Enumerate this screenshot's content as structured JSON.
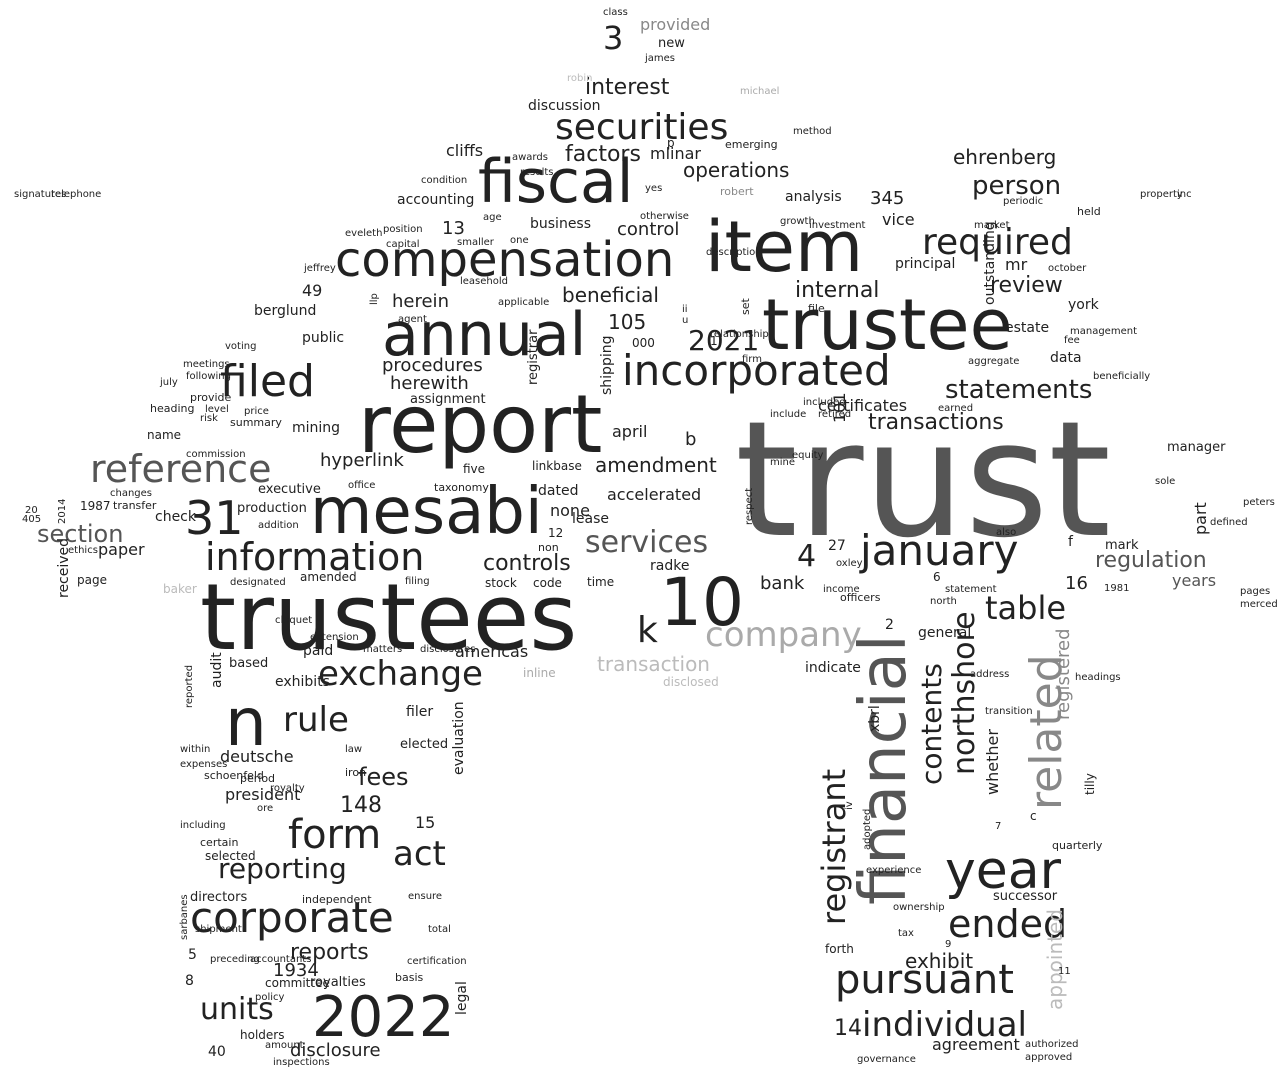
{
  "words": [
    {
      "text": "trust",
      "color": "#555555"
    },
    {
      "text": "trustees",
      "color": "#222222"
    },
    {
      "text": "item",
      "color": "#222222"
    },
    {
      "text": "trustee",
      "color": "#222222"
    },
    {
      "text": "report",
      "color": "#222222"
    },
    {
      "text": "mesabi",
      "color": "#222222"
    },
    {
      "text": "fiscal",
      "color": "#222222"
    },
    {
      "text": "annual",
      "color": "#222222"
    },
    {
      "text": "compensation",
      "color": "#222222"
    },
    {
      "text": "financial",
      "color": "#555555"
    },
    {
      "text": "2022",
      "color": "#222222"
    },
    {
      "text": "10",
      "color": "#222222"
    },
    {
      "text": "n",
      "color": "#222222"
    },
    {
      "text": "year",
      "color": "#222222"
    },
    {
      "text": "incorporated",
      "color": "#222222"
    },
    {
      "text": "january",
      "color": "#222222"
    },
    {
      "text": "pursuant",
      "color": "#222222"
    },
    {
      "text": "reference",
      "color": "#555555"
    },
    {
      "text": "filed",
      "color": "#222222"
    },
    {
      "text": "corporate",
      "color": "#222222"
    },
    {
      "text": "information",
      "color": "#222222"
    },
    {
      "text": "securities",
      "color": "#222222"
    },
    {
      "text": "form",
      "color": "#222222"
    },
    {
      "text": "ended",
      "color": "#222222"
    },
    {
      "text": "required",
      "color": "#222222"
    },
    {
      "text": "individual",
      "color": "#222222"
    },
    {
      "text": "related",
      "color": "#888888"
    },
    {
      "text": "registrant",
      "color": "#222222"
    },
    {
      "text": "exchange",
      "color": "#222222"
    },
    {
      "text": "company",
      "color": "#aaaaaa"
    },
    {
      "text": "31",
      "color": "#222222"
    },
    {
      "text": "table",
      "color": "#222222"
    },
    {
      "text": "statements",
      "color": "#222222"
    },
    {
      "text": "services",
      "color": "#555555"
    },
    {
      "text": "rule",
      "color": "#222222"
    },
    {
      "text": "reporting",
      "color": "#222222"
    },
    {
      "text": "act",
      "color": "#222222"
    },
    {
      "text": "units",
      "color": "#222222"
    },
    {
      "text": "transactions",
      "color": "#222222"
    },
    {
      "text": "person",
      "color": "#222222"
    },
    {
      "text": "northshore",
      "color": "#222222"
    },
    {
      "text": "contents",
      "color": "#222222"
    },
    {
      "text": "section",
      "color": "#555555"
    },
    {
      "text": "k",
      "color": "#222222"
    },
    {
      "text": "3",
      "color": "#222222"
    },
    {
      "text": "4",
      "color": "#222222"
    },
    {
      "text": "interest",
      "color": "#222222"
    },
    {
      "text": "review",
      "color": "#222222"
    },
    {
      "text": "controls",
      "color": "#222222"
    },
    {
      "text": "amendment",
      "color": "#222222"
    },
    {
      "text": "internal",
      "color": "#222222"
    },
    {
      "text": "beneficial",
      "color": "#222222"
    },
    {
      "text": "fees",
      "color": "#222222"
    },
    {
      "text": "reports",
      "color": "#222222"
    },
    {
      "text": "operations",
      "color": "#222222"
    },
    {
      "text": "ehrenberg",
      "color": "#222222"
    },
    {
      "text": "regulation",
      "color": "#555555"
    },
    {
      "text": "transaction",
      "color": "#bbbbbb"
    },
    {
      "text": "exhibit",
      "color": "#222222"
    },
    {
      "text": "disclosure",
      "color": "#222222"
    },
    {
      "text": "procedures",
      "color": "#222222"
    },
    {
      "text": "herewith",
      "color": "#222222"
    },
    {
      "text": "bank",
      "color": "#222222"
    },
    {
      "text": "appointed",
      "color": "#bbbbbb"
    },
    {
      "text": "registered",
      "color": "#888888"
    },
    {
      "text": "whether",
      "color": "#222222"
    },
    {
      "text": "agreement",
      "color": "#222222"
    },
    {
      "text": "control",
      "color": "#222222"
    },
    {
      "text": "herein",
      "color": "#222222"
    },
    {
      "text": "hyperlink",
      "color": "#222222"
    },
    {
      "text": "americas",
      "color": "#222222"
    },
    {
      "text": "accelerated",
      "color": "#222222"
    },
    {
      "text": "certificates",
      "color": "#222222"
    },
    {
      "text": "president",
      "color": "#222222"
    },
    {
      "text": "deutsche",
      "color": "#222222"
    },
    {
      "text": "cliffs",
      "color": "#222222"
    },
    {
      "text": "mlinar",
      "color": "#222222"
    },
    {
      "text": "accounting",
      "color": "#222222"
    },
    {
      "text": "business",
      "color": "#222222"
    },
    {
      "text": "discussion",
      "color": "#222222"
    },
    {
      "text": "analysis",
      "color": "#222222"
    },
    {
      "text": "principal",
      "color": "#222222"
    },
    {
      "text": "vice",
      "color": "#222222"
    },
    {
      "text": "mr",
      "color": "#222222"
    },
    {
      "text": "estate",
      "color": "#222222"
    },
    {
      "text": "york",
      "color": "#222222"
    },
    {
      "text": "data",
      "color": "#222222"
    },
    {
      "text": "berglund",
      "color": "#222222"
    },
    {
      "text": "public",
      "color": "#222222"
    },
    {
      "text": "mining",
      "color": "#222222"
    },
    {
      "text": "assignment",
      "color": "#222222"
    },
    {
      "text": "executive",
      "color": "#222222"
    },
    {
      "text": "production",
      "color": "#222222"
    },
    {
      "text": "check",
      "color": "#222222"
    },
    {
      "text": "paper",
      "color": "#222222"
    },
    {
      "text": "dated",
      "color": "#222222"
    },
    {
      "text": "lease",
      "color": "#222222"
    },
    {
      "text": "april",
      "color": "#222222"
    },
    {
      "text": "radke",
      "color": "#222222"
    },
    {
      "text": "paid",
      "color": "#222222"
    },
    {
      "text": "audit",
      "color": "#222222"
    },
    {
      "text": "based",
      "color": "#222222"
    },
    {
      "text": "filer",
      "color": "#222222"
    },
    {
      "text": "elected",
      "color": "#222222"
    },
    {
      "text": "indicate",
      "color": "#222222"
    },
    {
      "text": "general",
      "color": "#222222"
    },
    {
      "text": "xbrl",
      "color": "#222222"
    },
    {
      "text": "mark",
      "color": "#222222"
    },
    {
      "text": "years",
      "color": "#555555"
    },
    {
      "text": "part",
      "color": "#222222"
    },
    {
      "text": "c",
      "color": "#222222"
    },
    {
      "text": "quarterly",
      "color": "#222222"
    },
    {
      "text": "successor",
      "color": "#222222"
    },
    {
      "text": "forth",
      "color": "#222222"
    },
    {
      "text": "royalties",
      "color": "#222222"
    },
    {
      "text": "committee",
      "color": "#222222"
    },
    {
      "text": "basis",
      "color": "#222222"
    },
    {
      "text": "holders",
      "color": "#222222"
    },
    {
      "text": "selected",
      "color": "#222222"
    },
    {
      "text": "certain",
      "color": "#222222"
    },
    {
      "text": "directors",
      "color": "#222222"
    },
    {
      "text": "independent",
      "color": "#222222"
    },
    {
      "text": "received",
      "color": "#222222"
    },
    {
      "text": "page",
      "color": "#222222"
    },
    {
      "text": "provided",
      "color": "#888888"
    },
    {
      "text": "new",
      "color": "#222222"
    },
    {
      "text": "james",
      "color": "#222222"
    },
    {
      "text": "factors",
      "color": "#222222"
    },
    {
      "text": "13",
      "color": "#222222"
    },
    {
      "text": "49",
      "color": "#222222"
    },
    {
      "text": "105",
      "color": "#222222"
    },
    {
      "text": "2021",
      "color": "#222222"
    },
    {
      "text": "1",
      "color": "#222222"
    },
    {
      "text": "000",
      "color": "#222222"
    },
    {
      "text": "none",
      "color": "#222222"
    },
    {
      "text": "12",
      "color": "#222222"
    },
    {
      "text": "non",
      "color": "#222222"
    },
    {
      "text": "stock",
      "color": "#222222"
    },
    {
      "text": "code",
      "color": "#222222"
    },
    {
      "text": "time",
      "color": "#222222"
    },
    {
      "text": "amended",
      "color": "#222222"
    },
    {
      "text": "exhibits",
      "color": "#222222"
    },
    {
      "text": "148",
      "color": "#222222"
    },
    {
      "text": "15",
      "color": "#222222"
    },
    {
      "text": "1934",
      "color": "#222222"
    },
    {
      "text": "40",
      "color": "#222222"
    },
    {
      "text": "5",
      "color": "#222222"
    },
    {
      "text": "8",
      "color": "#222222"
    },
    {
      "text": "14",
      "color": "#222222"
    },
    {
      "text": "2",
      "color": "#222222"
    },
    {
      "text": "16",
      "color": "#222222"
    },
    {
      "text": "27",
      "color": "#222222"
    },
    {
      "text": "101",
      "color": "#222222"
    },
    {
      "text": "345",
      "color": "#222222"
    },
    {
      "text": "b",
      "color": "#222222"
    },
    {
      "text": "f",
      "color": "#222222"
    },
    {
      "text": "p",
      "color": "#222222"
    },
    {
      "text": "6",
      "color": "#222222"
    },
    {
      "text": "officers",
      "color": "#222222"
    },
    {
      "text": "equity",
      "color": "#222222"
    },
    {
      "text": "outstanding",
      "color": "#222222"
    },
    {
      "text": "periodic",
      "color": "#222222"
    },
    {
      "text": "held",
      "color": "#222222"
    },
    {
      "text": "management",
      "color": "#222222"
    },
    {
      "text": "fee",
      "color": "#222222"
    },
    {
      "text": "market",
      "color": "#222222"
    },
    {
      "text": "included",
      "color": "#222222"
    },
    {
      "text": "include",
      "color": "#222222"
    },
    {
      "text": "retired",
      "color": "#222222"
    },
    {
      "text": "earned",
      "color": "#222222"
    },
    {
      "text": "schoenfeld",
      "color": "#222222"
    },
    {
      "text": "period",
      "color": "#222222"
    },
    {
      "text": "iron",
      "color": "#222222"
    },
    {
      "text": "ore",
      "color": "#222222"
    },
    {
      "text": "matters",
      "color": "#222222"
    },
    {
      "text": "disclosures",
      "color": "#222222"
    },
    {
      "text": "extension",
      "color": "#222222"
    },
    {
      "text": "five",
      "color": "#222222"
    },
    {
      "text": "taxonomy",
      "color": "#222222"
    },
    {
      "text": "office",
      "color": "#222222"
    },
    {
      "text": "name",
      "color": "#222222"
    },
    {
      "text": "provide",
      "color": "#222222"
    },
    {
      "text": "heading",
      "color": "#222222"
    },
    {
      "text": "risk",
      "color": "#222222"
    },
    {
      "text": "changes",
      "color": "#222222"
    },
    {
      "text": "summary",
      "color": "#222222"
    },
    {
      "text": "commission",
      "color": "#222222"
    },
    {
      "text": "linkbase",
      "color": "#222222"
    },
    {
      "text": "leasehold",
      "color": "#222222"
    },
    {
      "text": "smaller",
      "color": "#222222"
    },
    {
      "text": "position",
      "color": "#222222"
    },
    {
      "text": "eveleth",
      "color": "#222222"
    },
    {
      "text": "jeffrey",
      "color": "#222222"
    },
    {
      "text": "agent",
      "color": "#222222"
    },
    {
      "text": "awards",
      "color": "#222222"
    },
    {
      "text": "shipping",
      "color": "#222222"
    },
    {
      "text": "registrar",
      "color": "#222222"
    },
    {
      "text": "evaluation",
      "color": "#222222"
    },
    {
      "text": "tilly",
      "color": "#222222"
    },
    {
      "text": "legal",
      "color": "#222222"
    },
    {
      "text": "inline",
      "color": "#aaaaaa"
    },
    {
      "text": "disclosed",
      "color": "#bbbbbb"
    },
    {
      "text": "baker",
      "color": "#bbbbbb"
    },
    {
      "text": "robert",
      "color": "#888888"
    },
    {
      "text": "robin",
      "color": "#bbbbbb"
    },
    {
      "text": "michael",
      "color": "#aaaaaa"
    },
    {
      "text": "emerging",
      "color": "#222222"
    },
    {
      "text": "set",
      "color": "#222222"
    },
    {
      "text": "file",
      "color": "#222222"
    },
    {
      "text": "yes",
      "color": "#222222"
    },
    {
      "text": "condition",
      "color": "#222222"
    },
    {
      "text": "results",
      "color": "#222222"
    },
    {
      "text": "age",
      "color": "#222222"
    },
    {
      "text": "one",
      "color": "#222222"
    },
    {
      "text": "method",
      "color": "#222222"
    },
    {
      "text": "mine",
      "color": "#222222"
    },
    {
      "text": "income",
      "color": "#222222"
    },
    {
      "text": "oxley",
      "color": "#222222"
    },
    {
      "text": "statement",
      "color": "#222222"
    },
    {
      "text": "also",
      "color": "#222222"
    },
    {
      "text": "north",
      "color": "#222222"
    },
    {
      "text": "address",
      "color": "#222222"
    },
    {
      "text": "transition",
      "color": "#222222"
    },
    {
      "text": "headings",
      "color": "#222222"
    },
    {
      "text": "experience",
      "color": "#222222"
    },
    {
      "text": "ownership",
      "color": "#222222"
    },
    {
      "text": "tax",
      "color": "#222222"
    },
    {
      "text": "authorized",
      "color": "#222222"
    },
    {
      "text": "approved",
      "color": "#222222"
    },
    {
      "text": "governance",
      "color": "#222222"
    },
    {
      "text": "preceding",
      "color": "#222222"
    },
    {
      "text": "accountants",
      "color": "#222222"
    },
    {
      "text": "policy",
      "color": "#222222"
    },
    {
      "text": "amount",
      "color": "#222222"
    },
    {
      "text": "inspections",
      "color": "#222222"
    },
    {
      "text": "ensure",
      "color": "#222222"
    },
    {
      "text": "total",
      "color": "#222222"
    },
    {
      "text": "certification",
      "color": "#222222"
    },
    {
      "text": "manager",
      "color": "#222222"
    },
    {
      "text": "sole",
      "color": "#222222"
    },
    {
      "text": "peters",
      "color": "#222222"
    },
    {
      "text": "1987",
      "color": "#222222"
    },
    {
      "text": "transfer",
      "color": "#222222"
    },
    {
      "text": "11",
      "color": "#222222"
    },
    {
      "text": "9",
      "color": "#222222"
    },
    {
      "text": "7",
      "color": "#222222"
    },
    {
      "text": "20",
      "color": "#222222"
    },
    {
      "text": "405",
      "color": "#222222"
    },
    {
      "text": "2014",
      "color": "#222222"
    },
    {
      "text": "ethics",
      "color": "#222222"
    },
    {
      "text": "meetings",
      "color": "#222222"
    },
    {
      "text": "following",
      "color": "#222222"
    },
    {
      "text": "july",
      "color": "#222222"
    },
    {
      "text": "level",
      "color": "#222222"
    },
    {
      "text": "reported",
      "color": "#222222"
    },
    {
      "text": "within",
      "color": "#222222"
    },
    {
      "text": "expenses",
      "color": "#222222"
    },
    {
      "text": "including",
      "color": "#222222"
    },
    {
      "text": "sarbanes",
      "color": "#222222"
    },
    {
      "text": "shipment",
      "color": "#222222"
    },
    {
      "text": "law",
      "color": "#222222"
    },
    {
      "text": "royalty",
      "color": "#222222"
    },
    {
      "text": "cloquet",
      "color": "#222222"
    },
    {
      "text": "designated",
      "color": "#222222"
    },
    {
      "text": "addition",
      "color": "#222222"
    },
    {
      "text": "filing",
      "color": "#222222"
    },
    {
      "text": "adopted",
      "color": "#222222"
    },
    {
      "text": "iv",
      "color": "#222222"
    },
    {
      "text": "respect",
      "color": "#222222"
    },
    {
      "text": "firm",
      "color": "#222222"
    },
    {
      "text": "description",
      "color": "#222222"
    },
    {
      "text": "applicable",
      "color": "#222222"
    },
    {
      "text": "relationships",
      "color": "#222222"
    },
    {
      "text": "ii",
      "color": "#222222"
    },
    {
      "text": "u",
      "color": "#222222"
    },
    {
      "text": "llp",
      "color": "#222222"
    },
    {
      "text": "otherwise",
      "color": "#222222"
    },
    {
      "text": "capital",
      "color": "#222222"
    },
    {
      "text": "investment",
      "color": "#222222"
    },
    {
      "text": "growth",
      "color": "#222222"
    },
    {
      "text": "october",
      "color": "#222222"
    },
    {
      "text": "aggregate",
      "color": "#222222"
    },
    {
      "text": "beneficially",
      "color": "#222222"
    },
    {
      "text": "price",
      "color": "#222222"
    },
    {
      "text": "defined",
      "color": "#222222"
    },
    {
      "text": "merced",
      "color": "#222222"
    },
    {
      "text": "pages",
      "color": "#222222"
    },
    {
      "text": "1981",
      "color": "#222222"
    },
    {
      "text": "class",
      "color": "#222222"
    },
    {
      "text": "voting",
      "color": "#222222"
    },
    {
      "text": "property",
      "color": "#222222"
    },
    {
      "text": "inc",
      "color": "#222222"
    },
    {
      "text": "signatures",
      "color": "#222222"
    },
    {
      "text": "telephone",
      "color": "#222222"
    }
  ]
}
